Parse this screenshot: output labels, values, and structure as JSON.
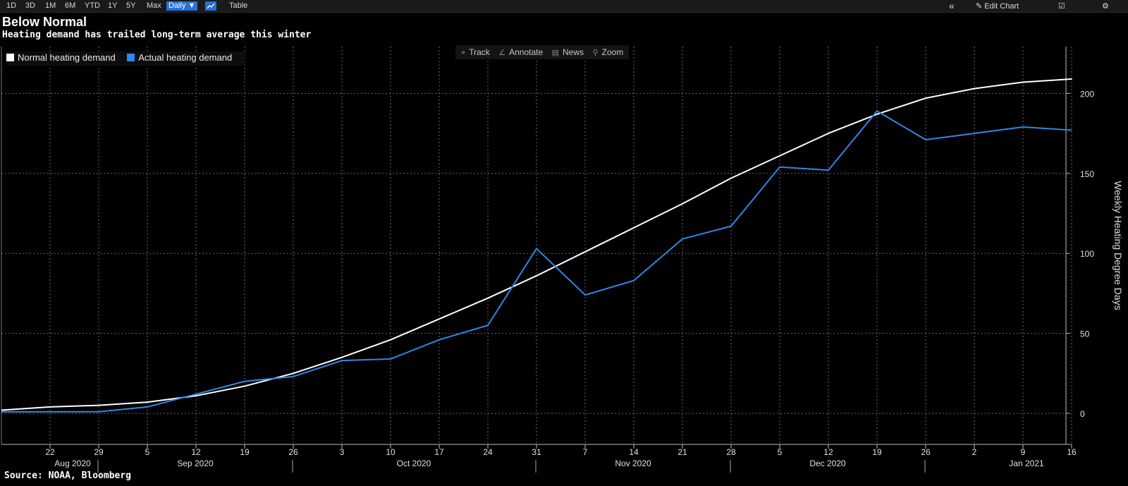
{
  "toolbar": {
    "ranges": [
      "1D",
      "3D",
      "1M",
      "6M",
      "YTD",
      "1Y",
      "5Y",
      "Max"
    ],
    "interval": "Daily ▼",
    "table_label": "Table",
    "collapse_label": "«",
    "edit_label": "Edit Chart"
  },
  "chart_tools": {
    "track": "Track",
    "annotate": "Annotate",
    "news": "News",
    "zoom": "Zoom"
  },
  "header": {
    "title": "Below Normal",
    "subtitle": "Heating demand has trailed long-term average this winter"
  },
  "source": "Source: NOAA, Bloomberg",
  "colors": {
    "normal": "#ffffff",
    "actual": "#2f87e8",
    "grid": "#6a6a6a",
    "background": "#000000"
  },
  "chart_data": {
    "type": "line",
    "ylabel": "Weekly Heating Degree Days",
    "ylim": [
      -20,
      230
    ],
    "yticks": [
      0,
      50,
      100,
      150,
      200
    ],
    "x_day_labels": [
      "22",
      "29",
      "5",
      "12",
      "19",
      "26",
      "3",
      "10",
      "17",
      "24",
      "31",
      "7",
      "14",
      "21",
      "28",
      "5",
      "12",
      "19",
      "26",
      "2",
      "9",
      "16"
    ],
    "x_month_labels": [
      "Aug 2020",
      "Sep 2020",
      "Oct 2020",
      "Nov 2020",
      "Dec 2020",
      "Jan 2021"
    ],
    "x": [
      "2020-08-15",
      "2020-08-22",
      "2020-08-29",
      "2020-09-05",
      "2020-09-12",
      "2020-09-19",
      "2020-09-26",
      "2020-10-03",
      "2020-10-10",
      "2020-10-17",
      "2020-10-24",
      "2020-10-31",
      "2020-11-07",
      "2020-11-14",
      "2020-11-21",
      "2020-11-28",
      "2020-12-05",
      "2020-12-12",
      "2020-12-19",
      "2020-12-26",
      "2021-01-02",
      "2021-01-09",
      "2021-01-16"
    ],
    "series": [
      {
        "name": "Normal heating demand",
        "values": [
          2,
          4,
          5,
          7,
          11,
          17,
          25,
          35,
          46,
          59,
          72,
          86,
          101,
          116,
          131,
          147,
          161,
          175,
          187,
          197,
          203,
          207,
          209
        ]
      },
      {
        "name": "Actual heating demand",
        "values": [
          1,
          1,
          1,
          4,
          12,
          20,
          23,
          33,
          34,
          46,
          55,
          103,
          74,
          83,
          109,
          117,
          154,
          152,
          189,
          171,
          null,
          179,
          177
        ]
      }
    ],
    "grid": true,
    "legend": "top-left"
  }
}
